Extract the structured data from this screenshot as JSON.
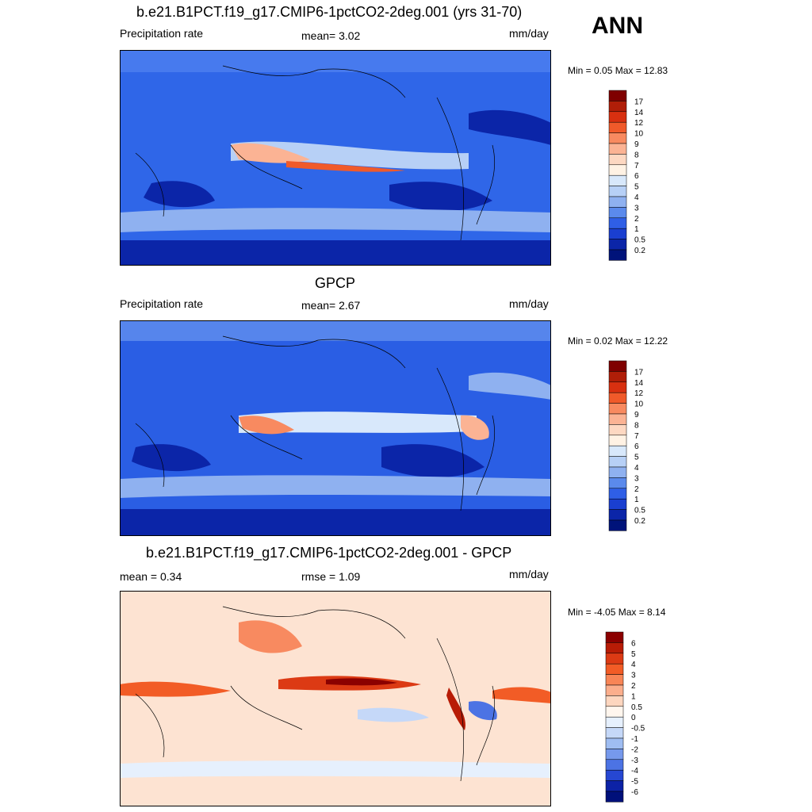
{
  "season": "ANN",
  "panels": [
    {
      "title": "b.e21.B1PCT.f19_g17.CMIP6-1pctCO2-2deg.001 (yrs 31-70)",
      "left_label": "Precipitation rate",
      "center_label": "mean=   3.02",
      "right_label": "mm/day",
      "minmax": "Min =   0.05 Max =  12.83",
      "colorbar_labels": [
        "17",
        "14",
        "12",
        "10",
        "9",
        "8",
        "7",
        "6",
        "5",
        "4",
        "3",
        "2",
        "1",
        "0.5",
        "0.2"
      ],
      "colorbar_colors": [
        "#7f0000",
        "#b01e08",
        "#d83010",
        "#f05a2a",
        "#f88a60",
        "#fbb394",
        "#fdd8c2",
        "#fff2e4",
        "#d8e8fb",
        "#b7d0f6",
        "#8fb1f0",
        "#5b8aec",
        "#2f5fe6",
        "#1a3fd0",
        "#0b25a8",
        "#00137a"
      ],
      "map_fill": "#2f66e8"
    },
    {
      "title": "GPCP",
      "left_label": "Precipitation rate",
      "center_label": "mean=   2.67",
      "right_label": "mm/day",
      "minmax": "Min =   0.02 Max =  12.22",
      "colorbar_labels": [
        "17",
        "14",
        "12",
        "10",
        "9",
        "8",
        "7",
        "6",
        "5",
        "4",
        "3",
        "2",
        "1",
        "0.5",
        "0.2"
      ],
      "colorbar_colors": [
        "#7f0000",
        "#b01e08",
        "#d83010",
        "#f05a2a",
        "#f88a60",
        "#fbb394",
        "#fdd8c2",
        "#fff2e4",
        "#d8e8fb",
        "#b7d0f6",
        "#8fb1f0",
        "#5b8aec",
        "#2f5fe6",
        "#1a3fd0",
        "#0b25a8",
        "#00137a"
      ],
      "map_fill": "#2a5ee4"
    },
    {
      "title": "b.e21.B1PCT.f19_g17.CMIP6-1pctCO2-2deg.001 - GPCP",
      "left_label": "mean =   0.34",
      "center_label": "rmse =   1.09",
      "right_label": "mm/day",
      "minmax": "Min =  -4.05 Max =   8.14",
      "colorbar_labels": [
        "6",
        "5",
        "4",
        "3",
        "2",
        "1",
        "0.5",
        "0",
        "-0.5",
        "-1",
        "-2",
        "-3",
        "-4",
        "-5",
        "-6"
      ],
      "colorbar_colors": [
        "#8b0000",
        "#b81c06",
        "#dc3a14",
        "#f25c26",
        "#f88556",
        "#fbae8c",
        "#fdd6bf",
        "#fff6ee",
        "#e6f0fd",
        "#c5d8f8",
        "#9fbdf2",
        "#7699ec",
        "#4c73e4",
        "#2647d2",
        "#0c22a6",
        "#00107a"
      ],
      "map_fill": "#fde3d2"
    }
  ],
  "chart_data": [
    {
      "type": "heatmap",
      "title": "b.e21.B1PCT.f19_g17.CMIP6-1pctCO2-2deg.001 (yrs 31-70)",
      "variable": "Precipitation rate",
      "units": "mm/day",
      "mean": 3.02,
      "min": 0.05,
      "max": 12.83,
      "levels": [
        0.2,
        0.5,
        1,
        2,
        3,
        4,
        5,
        6,
        7,
        8,
        9,
        10,
        12,
        14,
        17
      ]
    },
    {
      "type": "heatmap",
      "title": "GPCP",
      "variable": "Precipitation rate",
      "units": "mm/day",
      "mean": 2.67,
      "min": 0.02,
      "max": 12.22,
      "levels": [
        0.2,
        0.5,
        1,
        2,
        3,
        4,
        5,
        6,
        7,
        8,
        9,
        10,
        12,
        14,
        17
      ]
    },
    {
      "type": "heatmap",
      "title": "b.e21.B1PCT.f19_g17.CMIP6-1pctCO2-2deg.001 - GPCP",
      "units": "mm/day",
      "mean": 0.34,
      "rmse": 1.09,
      "min": -4.05,
      "max": 8.14,
      "levels": [
        -6,
        -5,
        -4,
        -3,
        -2,
        -1,
        -0.5,
        0,
        0.5,
        1,
        2,
        3,
        4,
        5,
        6
      ]
    }
  ]
}
